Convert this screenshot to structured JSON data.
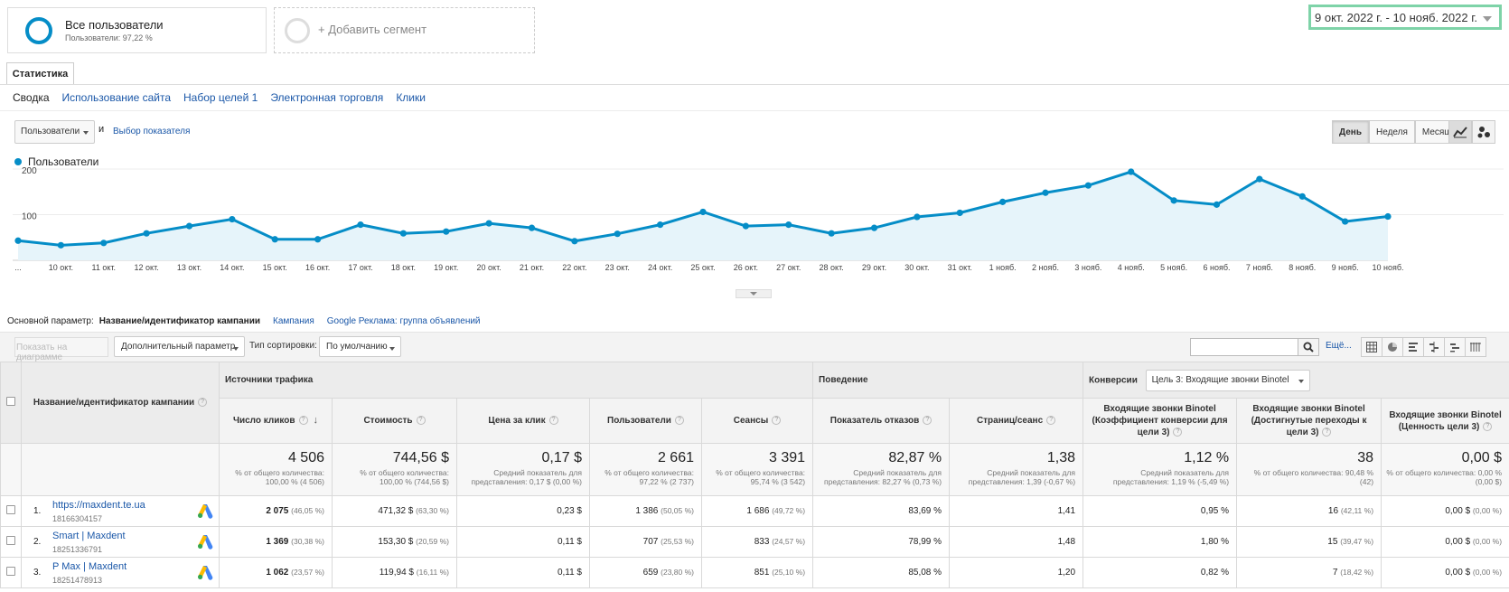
{
  "segments": {
    "all_users": {
      "title": "Все пользователи",
      "subtitle": "Пользователи: 97,22 %"
    },
    "add_label": "+ Добавить сегмент"
  },
  "date_range": "9 окт. 2022 г. - 10 нояб. 2022 г.",
  "tab": "Статистика",
  "subtabs": [
    "Сводка",
    "Использование сайта",
    "Набор целей 1",
    "Электронная торговля",
    "Клики"
  ],
  "metric": {
    "selected": "Пользователи",
    "and": "и",
    "pick": "Выбор показателя"
  },
  "period": [
    "День",
    "Неделя",
    "Месяц"
  ],
  "legend": "Пользователи",
  "colors": {
    "series": "#058dc7",
    "fill": "#e6f4fa",
    "date_outline": "#7ed3a8"
  },
  "chart_data": {
    "type": "area",
    "title": "",
    "xlabel": "",
    "ylabel": "",
    "ylim": [
      0,
      200
    ],
    "yticks": [
      100,
      200
    ],
    "x": [
      "...",
      "10 окт.",
      "11 окт.",
      "12 окт.",
      "13 окт.",
      "14 окт.",
      "15 окт.",
      "16 окт.",
      "17 окт.",
      "18 окт.",
      "19 окт.",
      "20 окт.",
      "21 окт.",
      "22 окт.",
      "23 окт.",
      "24 окт.",
      "25 окт.",
      "26 окт.",
      "27 окт.",
      "28 окт.",
      "29 окт.",
      "30 окт.",
      "31 окт.",
      "1 нояб.",
      "2 нояб.",
      "3 нояб.",
      "4 нояб.",
      "5 нояб.",
      "6 нояб.",
      "7 нояб.",
      "8 нояб.",
      "9 нояб.",
      "10 нояб."
    ],
    "series": [
      {
        "name": "Пользователи",
        "values": [
          43,
          33,
          38,
          59,
          75,
          90,
          46,
          46,
          78,
          59,
          63,
          81,
          71,
          42,
          58,
          78,
          106,
          75,
          78,
          59,
          71,
          95,
          104,
          128,
          148,
          164,
          194,
          131,
          122,
          178,
          140,
          85,
          96
        ]
      }
    ],
    "grid": true,
    "legend": "top-left"
  },
  "primary_dimension": {
    "label": "Основной параметр:",
    "current": "Название/идентификатор кампании",
    "options": [
      "Кампания",
      "Google Реклама: группа объявлений"
    ]
  },
  "toolbar": {
    "plot": "Показать на диаграмме",
    "secondary": "Дополнительный параметр",
    "sort_label": "Тип сортировки:",
    "sort_value": "По умолчанию",
    "more": "Ещё..."
  },
  "table": {
    "dim_header": "Название/идентификатор кампании",
    "groups": {
      "acquisition": "Источники трафика",
      "behavior": "Поведение",
      "conversions": "Конверсии",
      "goal_select": "Цель 3: Входящие звонки Binotel"
    },
    "columns": [
      "Число кликов",
      "Стоимость",
      "Цена за клик",
      "Пользователи",
      "Сеансы",
      "Показатель отказов",
      "Страниц/сеанс",
      "Входящие звонки Binotel (Коэффициент конверсии для цели 3)",
      "Входящие звонки Binotel (Достигнутые переходы к цели 3)",
      "Входящие звонки Binotel (Ценность цели 3)"
    ],
    "totals": [
      {
        "value": "4 506",
        "note": "% от общего количества: 100,00 % (4 506)"
      },
      {
        "value": "744,56 $",
        "note": "% от общего количества: 100,00 % (744,56 $)"
      },
      {
        "value": "0,17 $",
        "note": "Средний показатель для представления: 0,17 $ (0,00 %)"
      },
      {
        "value": "2 661",
        "note": "% от общего количества: 97,22 % (2 737)"
      },
      {
        "value": "3 391",
        "note": "% от общего количества: 95,74 % (3 542)"
      },
      {
        "value": "82,87 %",
        "note": "Средний показатель для представления: 82,27 % (0,73 %)"
      },
      {
        "value": "1,38",
        "note": "Средний показатель для представления: 1,39 (-0,67 %)"
      },
      {
        "value": "1,12 %",
        "note": "Средний показатель для представления: 1,19 % (-5,49 %)"
      },
      {
        "value": "38",
        "note": "% от общего количества: 90,48 % (42)"
      },
      {
        "value": "0,00 $",
        "note": "% от общего количества: 0,00 % (0,00 $)"
      }
    ],
    "rows": [
      {
        "idx": "1.",
        "name": "https://maxdent.te.ua",
        "id": "18166304157",
        "cells": [
          {
            "v": "2 075",
            "p": "(46,05 %)"
          },
          {
            "v": "471,32 $",
            "p": "(63,30 %)"
          },
          {
            "v": "0,23 $",
            "p": ""
          },
          {
            "v": "1 386",
            "p": "(50,05 %)"
          },
          {
            "v": "1 686",
            "p": "(49,72 %)"
          },
          {
            "v": "83,69 %",
            "p": ""
          },
          {
            "v": "1,41",
            "p": ""
          },
          {
            "v": "0,95 %",
            "p": ""
          },
          {
            "v": "16",
            "p": "(42,11 %)"
          },
          {
            "v": "0,00 $",
            "p": "(0,00 %)"
          }
        ]
      },
      {
        "idx": "2.",
        "name": "Smart | Maxdent",
        "id": "18251336791",
        "cells": [
          {
            "v": "1 369",
            "p": "(30,38 %)"
          },
          {
            "v": "153,30 $",
            "p": "(20,59 %)"
          },
          {
            "v": "0,11 $",
            "p": ""
          },
          {
            "v": "707",
            "p": "(25,53 %)"
          },
          {
            "v": "833",
            "p": "(24,57 %)"
          },
          {
            "v": "78,99 %",
            "p": ""
          },
          {
            "v": "1,48",
            "p": ""
          },
          {
            "v": "1,80 %",
            "p": ""
          },
          {
            "v": "15",
            "p": "(39,47 %)"
          },
          {
            "v": "0,00 $",
            "p": "(0,00 %)"
          }
        ]
      },
      {
        "idx": "3.",
        "name": "P Max | Maxdent",
        "id": "18251478913",
        "cells": [
          {
            "v": "1 062",
            "p": "(23,57 %)"
          },
          {
            "v": "119,94 $",
            "p": "(16,11 %)"
          },
          {
            "v": "0,11 $",
            "p": ""
          },
          {
            "v": "659",
            "p": "(23,80 %)"
          },
          {
            "v": "851",
            "p": "(25,10 %)"
          },
          {
            "v": "85,08 %",
            "p": ""
          },
          {
            "v": "1,20",
            "p": ""
          },
          {
            "v": "0,82 %",
            "p": ""
          },
          {
            "v": "7",
            "p": "(18,42 %)"
          },
          {
            "v": "0,00 $",
            "p": "(0,00 %)"
          }
        ]
      }
    ]
  }
}
